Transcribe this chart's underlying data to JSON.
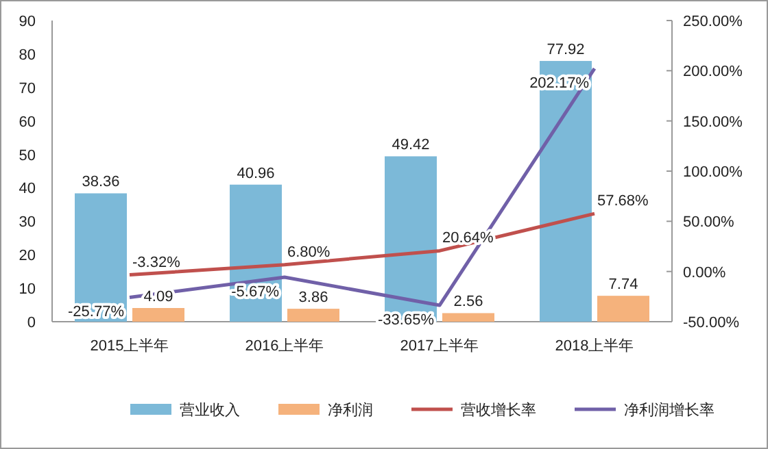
{
  "chart_data": {
    "type": "bar",
    "categories": [
      "2015上半年",
      "2016上半年",
      "2017上半年",
      "2018上半年"
    ],
    "series": [
      {
        "name": "营业收入",
        "color": "#7cb9d8",
        "values": [
          38.36,
          40.96,
          49.42,
          77.92
        ],
        "value_labels": [
          "38.36",
          "40.96",
          "49.42",
          "77.92"
        ]
      },
      {
        "name": "净利润",
        "color": "#f5b27c",
        "values": [
          4.09,
          3.86,
          2.56,
          7.74
        ],
        "value_labels": [
          "4.09",
          "3.86",
          "2.56",
          "7.74"
        ]
      },
      {
        "name": "营收增长率",
        "type": "line",
        "axis": "y2",
        "color": "#c0504d",
        "values": [
          -3.32,
          6.8,
          20.64,
          57.68
        ],
        "value_labels": [
          "-3.32%",
          "6.80%",
          "20.64%",
          "57.68%"
        ]
      },
      {
        "name": "净利润增长率",
        "type": "line",
        "axis": "y2",
        "color": "#7060a8",
        "values": [
          -25.77,
          -5.67,
          -33.65,
          202.17
        ],
        "value_labels": [
          "-25.77%",
          "-5.67%",
          "-33.65%",
          "202.17%"
        ]
      }
    ],
    "ylim": [
      0,
      90
    ],
    "yticks": [
      0,
      10,
      20,
      30,
      40,
      50,
      60,
      70,
      80,
      90
    ],
    "y2lim": [
      -50,
      250
    ],
    "y2ticks": [
      {
        "value": -50,
        "label": "-50.00%"
      },
      {
        "value": 0,
        "label": "0.00%"
      },
      {
        "value": 50,
        "label": "50.00%"
      },
      {
        "value": 100,
        "label": "100.00%"
      },
      {
        "value": 150,
        "label": "150.00%"
      },
      {
        "value": 200,
        "label": "200.00%"
      },
      {
        "value": 250,
        "label": "250.00%"
      }
    ],
    "grid": false,
    "legend": "bottom",
    "marker": "none",
    "line_style": "solid"
  }
}
